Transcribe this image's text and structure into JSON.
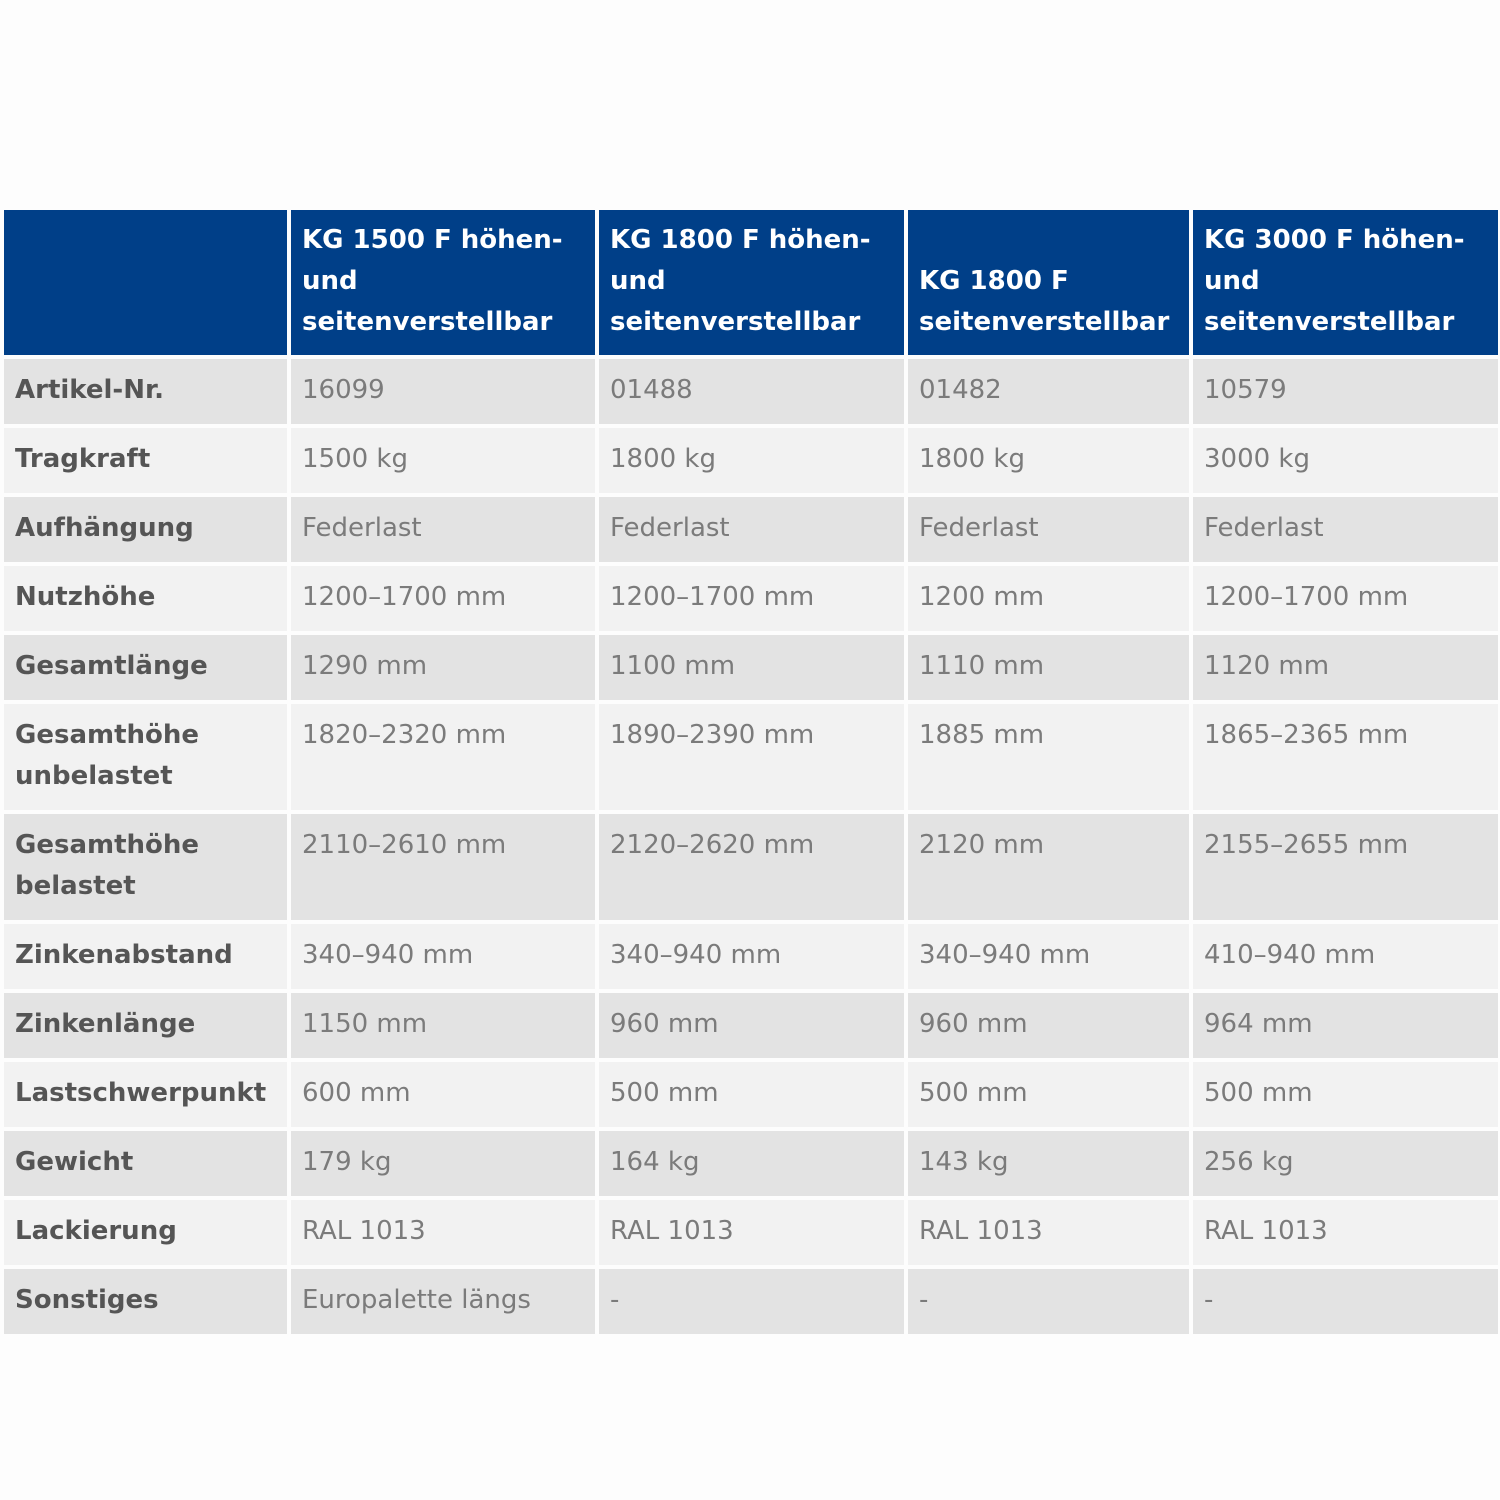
{
  "table": {
    "headers": [
      "",
      "KG 1500 F höhen- und seitenverstellbar",
      "KG 1800 F höhen- und seitenverstellbar",
      "KG 1800 F seitenverstellbar",
      "KG 3000 F höhen- und seitenverstellbar"
    ],
    "rows": [
      {
        "label": "Artikel-Nr.",
        "values": [
          "16099",
          "01488",
          "01482",
          "10579"
        ]
      },
      {
        "label": "Tragkraft",
        "values": [
          "1500 kg",
          "1800 kg",
          "1800 kg",
          "3000 kg"
        ]
      },
      {
        "label": "Aufhängung",
        "values": [
          "Federlast",
          "Federlast",
          "Federlast",
          "Federlast"
        ]
      },
      {
        "label": "Nutzhöhe",
        "values": [
          "1200–1700 mm",
          "1200–1700 mm",
          "1200 mm",
          "1200–1700 mm"
        ]
      },
      {
        "label": "Gesamtlänge",
        "values": [
          "1290 mm",
          "1100 mm",
          "1110 mm",
          "1120 mm"
        ]
      },
      {
        "label": "Gesamthöhe unbelastet",
        "values": [
          "1820–2320 mm",
          "1890–2390 mm",
          "1885 mm",
          "1865–2365 mm"
        ]
      },
      {
        "label": "Gesamthöhe belastet",
        "values": [
          "2110–2610 mm",
          "2120–2620 mm",
          "2120 mm",
          "2155–2655 mm"
        ]
      },
      {
        "label": "Zinkenabstand",
        "values": [
          "340–940 mm",
          "340–940 mm",
          "340–940 mm",
          "410–940 mm"
        ]
      },
      {
        "label": "Zinkenlänge",
        "values": [
          "1150 mm",
          "960 mm",
          "960 mm",
          "964 mm"
        ]
      },
      {
        "label": "Lastschwerpunkt",
        "values": [
          "600 mm",
          "500 mm",
          "500 mm",
          "500 mm"
        ]
      },
      {
        "label": "Gewicht",
        "values": [
          "179 kg",
          "164 kg",
          "143 kg",
          "256 kg"
        ]
      },
      {
        "label": "Lackierung",
        "values": [
          "RAL 1013",
          "RAL 1013",
          "RAL 1013",
          "RAL 1013"
        ]
      },
      {
        "label": "Sonstiges",
        "values": [
          "Europalette längs",
          "-",
          "-",
          "-"
        ]
      }
    ]
  },
  "colors": {
    "header_bg": "#003f88",
    "row_dark": "#e3e3e3",
    "row_light": "#f2f2f2"
  }
}
